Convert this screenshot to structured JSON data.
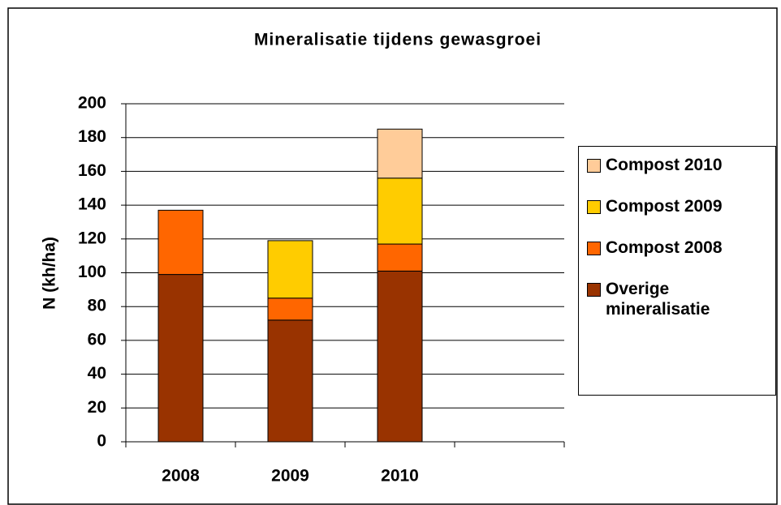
{
  "chart_data": {
    "type": "stacked_bar",
    "title": "Mineralisatie tijdens gewasgroei",
    "y_label": "N (kh/ha)",
    "categories": [
      "2008",
      "2009",
      "2010",
      null
    ],
    "series": [
      {
        "name": "Overige mineralisatie",
        "color": "#993300",
        "values": [
          99,
          72,
          101,
          null
        ]
      },
      {
        "name": "Compost 2008",
        "color": "#ff6600",
        "values": [
          38,
          13,
          16,
          null
        ]
      },
      {
        "name": "Compost 2009",
        "color": "#ffcc00",
        "values": [
          null,
          34,
          39,
          null
        ]
      },
      {
        "name": "Compost 2010",
        "color": "#ffcc99",
        "values": [
          null,
          null,
          29,
          null
        ]
      }
    ],
    "ylim": [
      0,
      200
    ],
    "yticks": [
      0,
      20,
      40,
      60,
      80,
      100,
      120,
      140,
      160,
      180,
      200
    ],
    "grid": true
  }
}
